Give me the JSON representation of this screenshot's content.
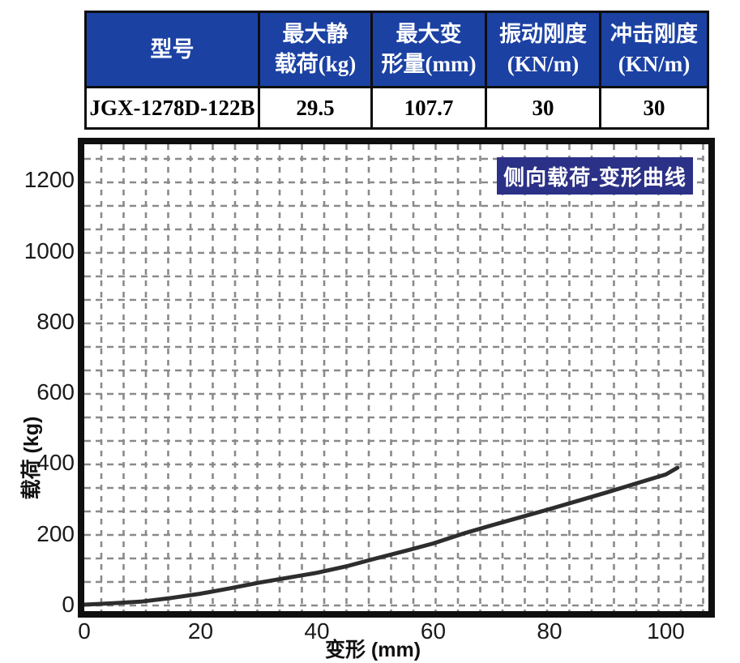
{
  "table": {
    "headers": [
      [
        "型号"
      ],
      [
        "最大静",
        "载荷(kg)"
      ],
      [
        "最大变",
        "形量(mm)"
      ],
      [
        "振动刚度",
        "(KN/m)"
      ],
      [
        "冲击刚度",
        "(KN/m)"
      ]
    ],
    "row": [
      "JGX-1278D-122B",
      "29.5",
      "107.7",
      "30",
      "30"
    ]
  },
  "chart_data": {
    "type": "line",
    "title": "侧向载荷-变形曲线",
    "xlabel": "变形 (mm)",
    "ylabel": "载荷 (kg)",
    "xlim": [
      0,
      108
    ],
    "ylim": [
      0,
      1300
    ],
    "x_ticks": [
      0,
      20,
      40,
      60,
      80,
      100
    ],
    "y_ticks": [
      0,
      200,
      400,
      600,
      800,
      1000,
      1200
    ],
    "grid": "dashed",
    "legend_position": "none",
    "series": [
      {
        "name": "侧向载荷-变形曲线",
        "points": [
          [
            0,
            0
          ],
          [
            5,
            4
          ],
          [
            10,
            9
          ],
          [
            15,
            19
          ],
          [
            20,
            31
          ],
          [
            25,
            46
          ],
          [
            30,
            62
          ],
          [
            35,
            76
          ],
          [
            40,
            90
          ],
          [
            45,
            108
          ],
          [
            50,
            130
          ],
          [
            55,
            151
          ],
          [
            60,
            173
          ],
          [
            65,
            200
          ],
          [
            70,
            224
          ],
          [
            75,
            247
          ],
          [
            80,
            270
          ],
          [
            85,
            294
          ],
          [
            90,
            318
          ],
          [
            95,
            343
          ],
          [
            100,
            368
          ],
          [
            102,
            387
          ]
        ]
      }
    ]
  },
  "colors": {
    "header_bg": "#1b41a3",
    "badge_bg": "#2b3186",
    "curve": "#2d2d2d",
    "grid": "#8a8a8a",
    "border": "#111111"
  }
}
